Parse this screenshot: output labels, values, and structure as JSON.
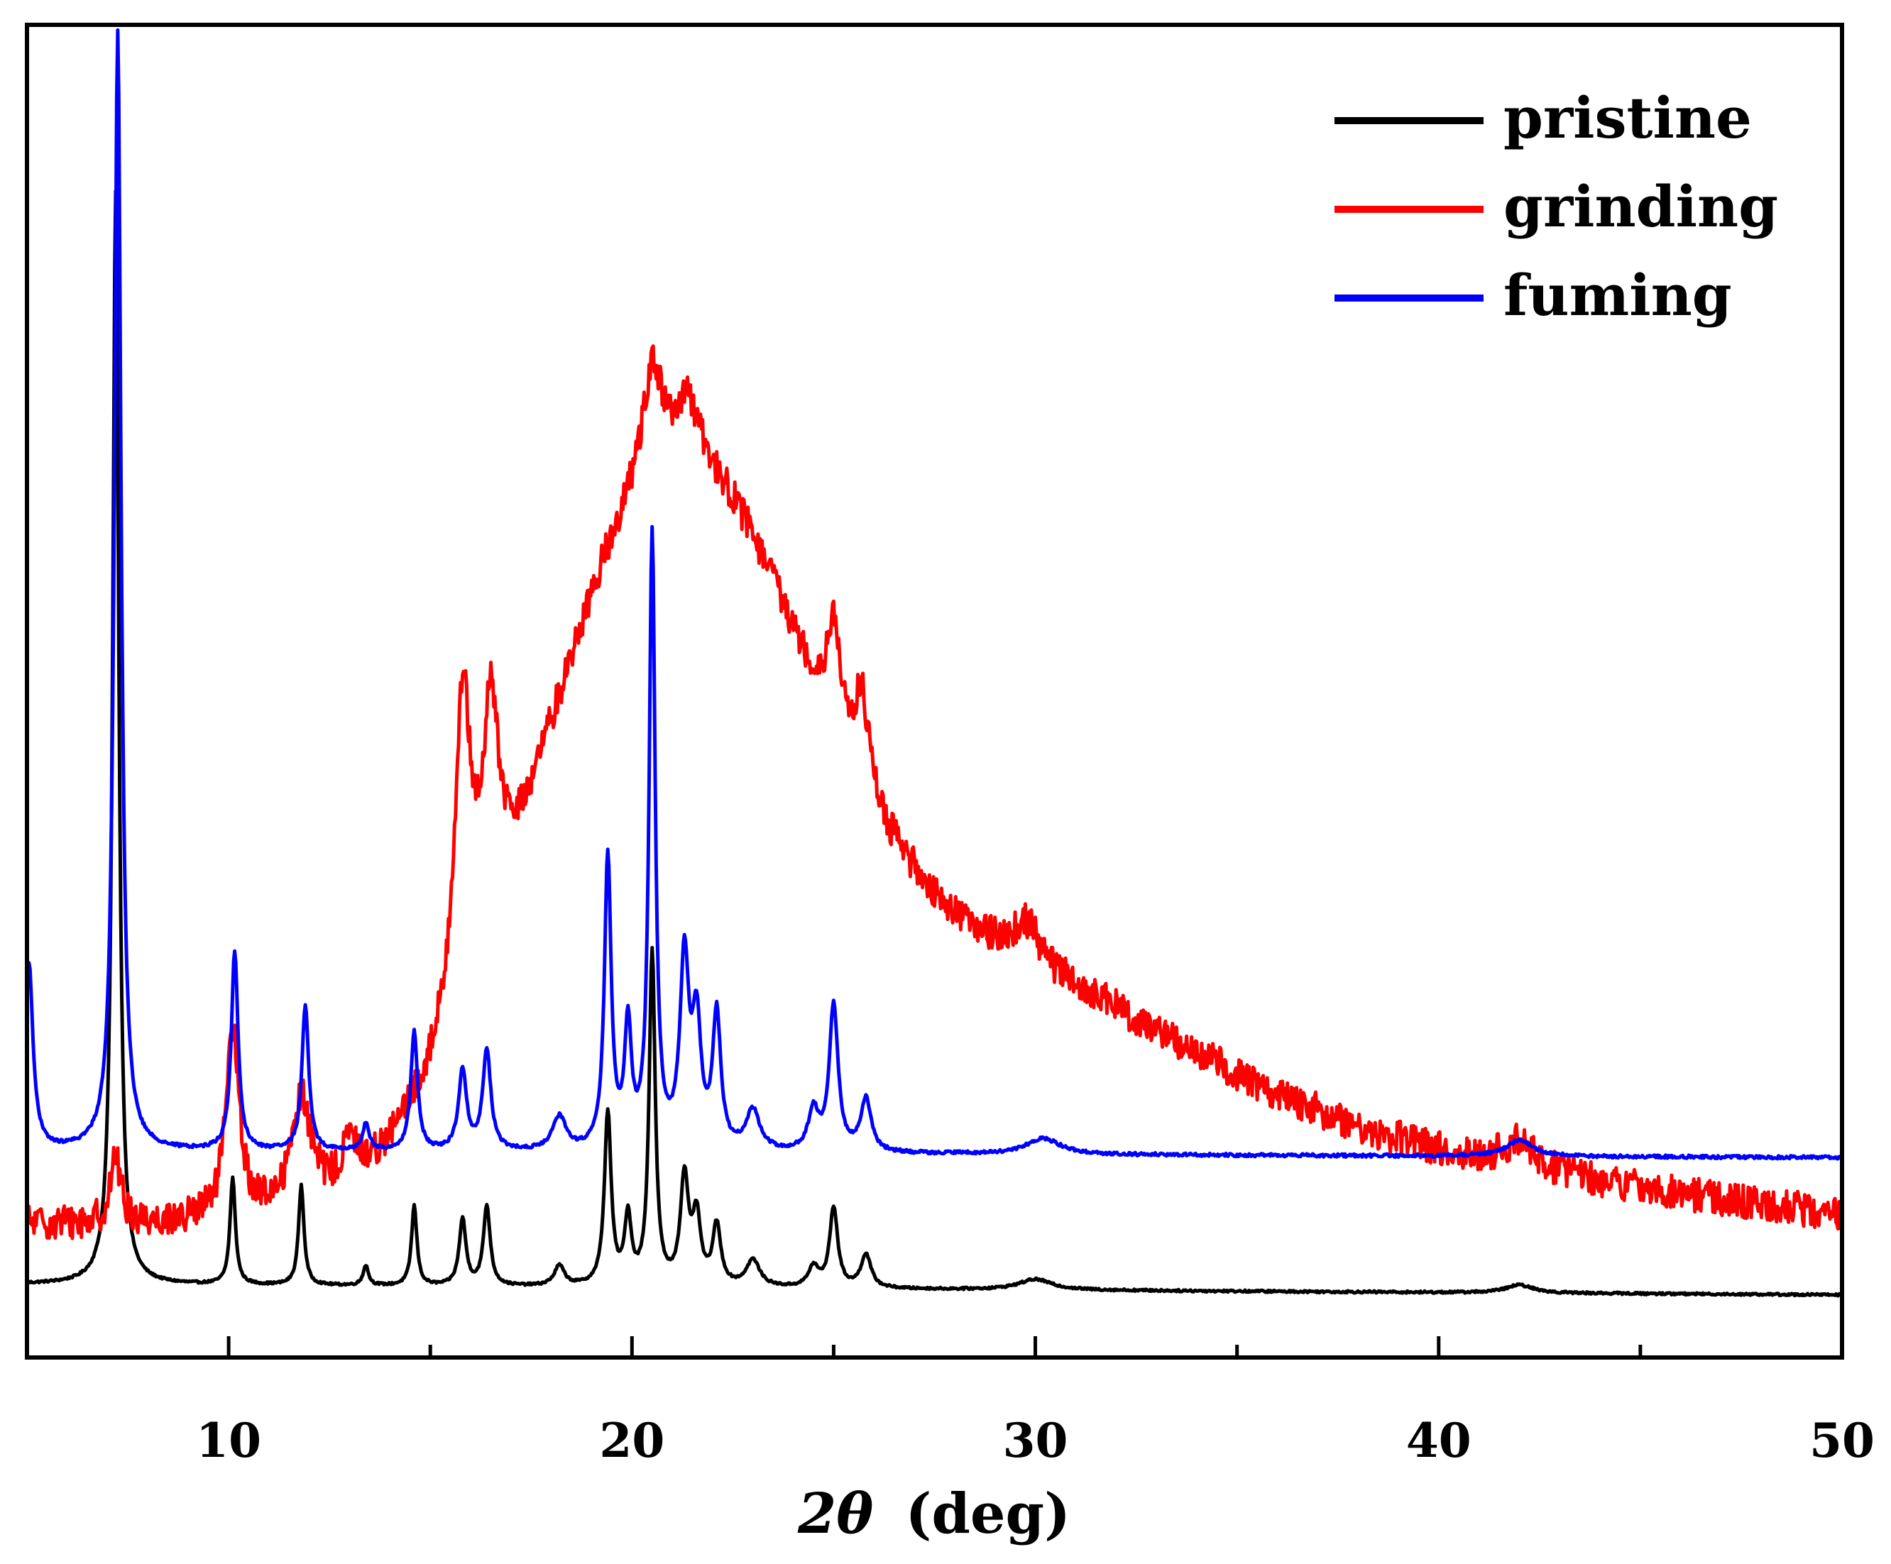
{
  "chart_data": {
    "type": "line",
    "title": "",
    "xlabel": "2θ (deg)",
    "xlabel_symbol": "2θ",
    "xlabel_unit": "(deg)",
    "ylabel": "",
    "xlim": [
      5,
      50
    ],
    "x_ticks": [
      10,
      20,
      30,
      40,
      50
    ],
    "y_ticks_shown": false,
    "grid": false,
    "legend_position": "top-right",
    "series": [
      {
        "name": "pristine",
        "color": "#000000",
        "baseline": 0.55,
        "end_level": 0.47,
        "noise": 0.008,
        "peaks": [
          [
            7.2,
            8.2,
            0.09
          ],
          [
            10.1,
            0.8,
            0.08
          ],
          [
            11.8,
            0.75,
            0.08
          ],
          [
            13.4,
            0.15,
            0.08
          ],
          [
            14.6,
            0.6,
            0.08
          ],
          [
            15.8,
            0.5,
            0.1
          ],
          [
            16.4,
            0.6,
            0.1
          ],
          [
            18.2,
            0.15,
            0.15
          ],
          [
            19.4,
            1.3,
            0.1
          ],
          [
            19.9,
            0.5,
            0.1
          ],
          [
            20.5,
            2.5,
            0.09
          ],
          [
            21.3,
            0.8,
            0.12
          ],
          [
            21.6,
            0.5,
            0.12
          ],
          [
            22.1,
            0.45,
            0.12
          ],
          [
            23.0,
            0.2,
            0.2
          ],
          [
            24.5,
            0.15,
            0.15
          ],
          [
            25.0,
            0.6,
            0.12
          ],
          [
            25.8,
            0.25,
            0.15
          ],
          [
            30.0,
            0.08,
            0.5
          ],
          [
            42.0,
            0.06,
            0.4
          ]
        ],
        "humps": []
      },
      {
        "name": "grinding",
        "color": "#ff0000",
        "baseline": 1.0,
        "end_level": 0.85,
        "noise": 0.13,
        "peaks": [
          [
            7.2,
            0.5,
            0.15
          ],
          [
            10.1,
            1.4,
            0.2
          ],
          [
            11.8,
            0.8,
            0.3
          ],
          [
            13.0,
            0.3,
            0.2
          ],
          [
            15.8,
            2.3,
            0.25
          ],
          [
            16.5,
            1.6,
            0.25
          ],
          [
            20.5,
            0.8,
            0.3
          ],
          [
            21.4,
            0.4,
            0.3
          ],
          [
            25.0,
            0.8,
            0.2
          ],
          [
            25.7,
            0.7,
            0.2
          ],
          [
            29.8,
            0.3,
            0.4
          ],
          [
            42.0,
            0.2,
            0.5
          ]
        ],
        "humps": [
          [
            20.8,
            4.8,
            3.2
          ],
          [
            27.5,
            1.6,
            5.5
          ],
          [
            36.0,
            0.6,
            10.0
          ]
        ]
      },
      {
        "name": "fuming",
        "color": "#0000ff",
        "baseline": 1.55,
        "end_level": 1.5,
        "noise": 0.012,
        "peaks": [
          [
            5.05,
            1.4,
            0.12
          ],
          [
            7.25,
            8.4,
            0.1
          ],
          [
            10.15,
            1.5,
            0.1
          ],
          [
            11.9,
            1.1,
            0.1
          ],
          [
            13.4,
            0.2,
            0.1
          ],
          [
            14.6,
            0.9,
            0.1
          ],
          [
            15.8,
            0.6,
            0.12
          ],
          [
            16.4,
            0.75,
            0.12
          ],
          [
            18.2,
            0.25,
            0.2
          ],
          [
            19.4,
            2.2,
            0.1
          ],
          [
            19.9,
            0.9,
            0.1
          ],
          [
            20.5,
            4.6,
            0.09
          ],
          [
            21.3,
            1.4,
            0.13
          ],
          [
            21.6,
            0.9,
            0.13
          ],
          [
            22.1,
            1.0,
            0.12
          ],
          [
            23.0,
            0.3,
            0.2
          ],
          [
            24.5,
            0.3,
            0.15
          ],
          [
            25.0,
            1.1,
            0.13
          ],
          [
            25.8,
            0.4,
            0.15
          ],
          [
            30.2,
            0.12,
            0.5
          ],
          [
            42.0,
            0.12,
            0.4
          ]
        ],
        "humps": []
      }
    ]
  }
}
